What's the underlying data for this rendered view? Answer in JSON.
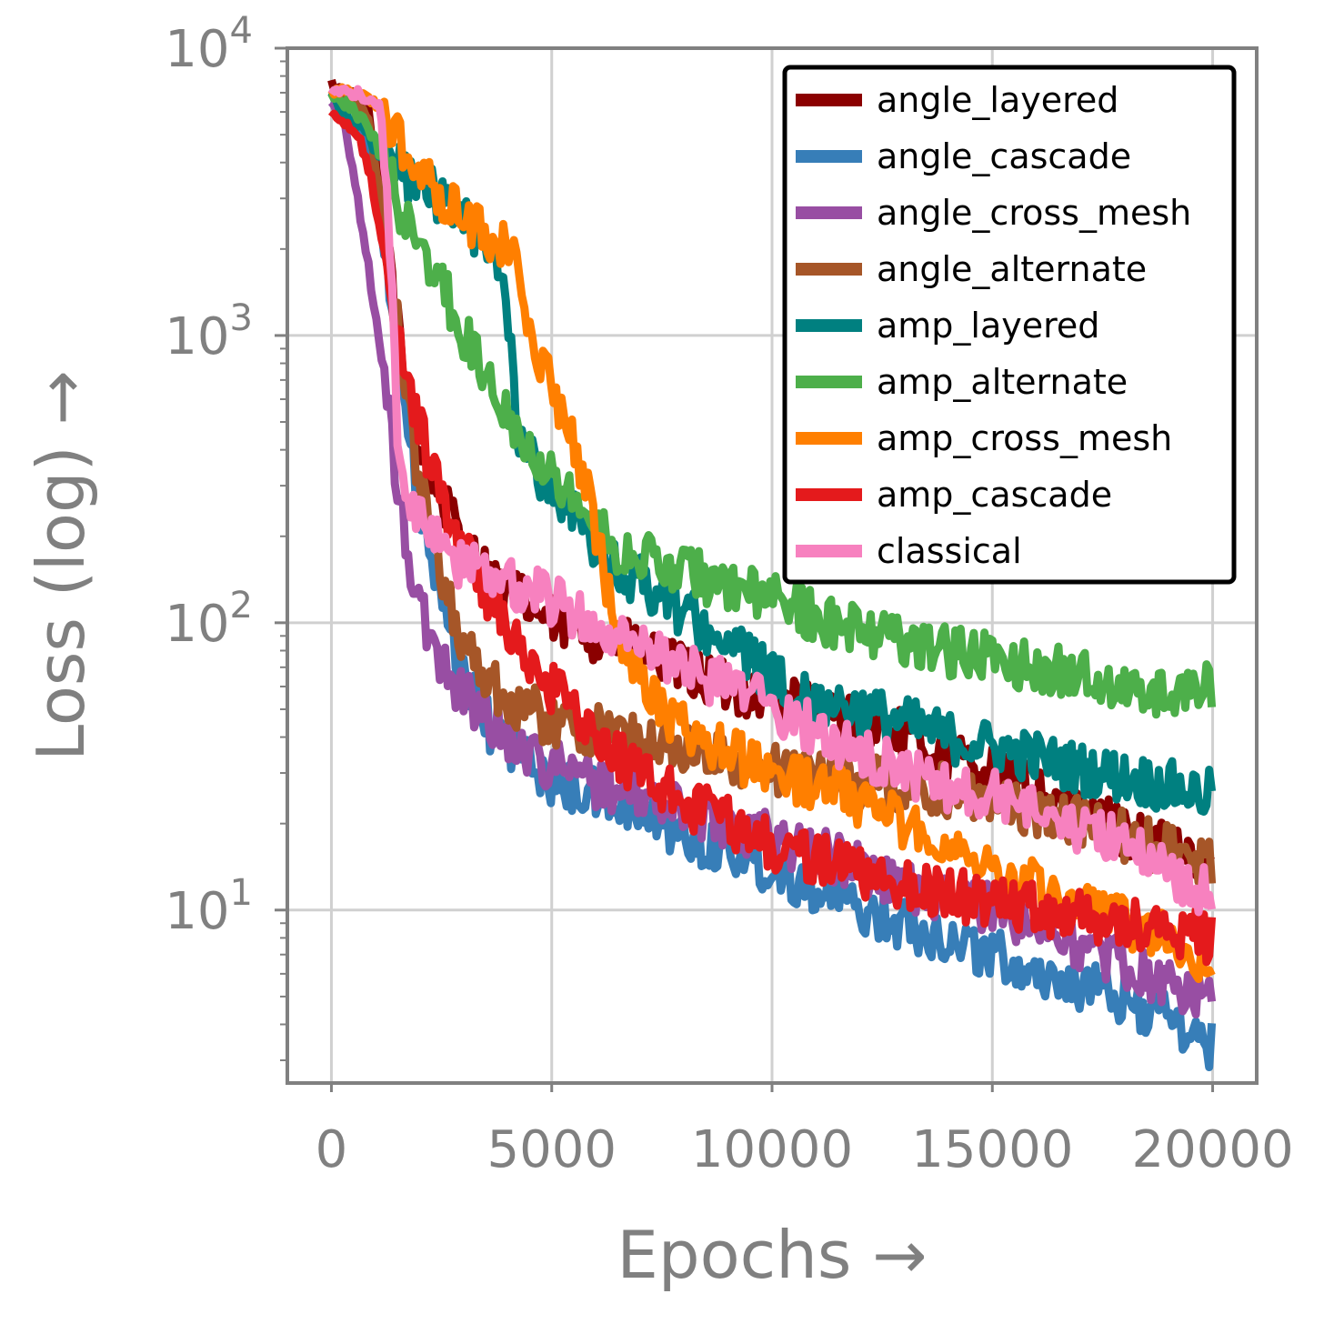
{
  "chart_data": {
    "type": "line",
    "xlabel": "Epochs →",
    "ylabel": "Loss (log) →",
    "xlim": [
      -1000,
      21000
    ],
    "ylim": [
      2.5,
      10000
    ],
    "y_scale": "log",
    "grid": true,
    "legend_position": "top-right",
    "x_ticks": [
      0,
      5000,
      10000,
      15000,
      20000
    ],
    "x_tick_labels": [
      "0",
      "5000",
      "10000",
      "15000",
      "20000"
    ],
    "y_ticks": [
      10,
      100,
      1000,
      10000
    ],
    "y_tick_base": "10",
    "y_tick_exponents": [
      "1",
      "2",
      "3",
      "4"
    ],
    "series": [
      {
        "name": "angle_layered",
        "color": "#8b0000",
        "x": [
          0,
          300,
          800,
          1200,
          1600,
          2000,
          2500,
          3000,
          3500,
          4000,
          5000,
          6000,
          7000,
          8000,
          9000,
          10000,
          11000,
          12000,
          13000,
          14000,
          15000,
          16000,
          17000,
          18000,
          19000,
          20000
        ],
        "y": [
          7500,
          7000,
          6500,
          2500,
          800,
          400,
          270,
          190,
          150,
          130,
          100,
          90,
          80,
          68,
          60,
          55,
          50,
          45,
          40,
          35,
          30,
          26,
          22,
          19,
          16,
          14
        ]
      },
      {
        "name": "angle_cascade",
        "color": "#377eb8",
        "x": [
          0,
          300,
          700,
          1000,
          1300,
          1600,
          2000,
          2500,
          3000,
          3500,
          4000,
          5000,
          6000,
          7000,
          8000,
          9000,
          10000,
          11000,
          12000,
          13000,
          14000,
          15000,
          16000,
          17000,
          18000,
          19000,
          20000
        ],
        "y": [
          6800,
          6000,
          5000,
          3500,
          1500,
          600,
          250,
          110,
          65,
          45,
          38,
          28,
          25,
          22,
          18,
          16,
          14,
          12,
          10,
          9,
          8,
          7,
          6,
          5.5,
          4.8,
          4.2,
          3.3
        ]
      },
      {
        "name": "angle_cross_mesh",
        "color": "#984ea3",
        "x": [
          0,
          300,
          600,
          900,
          1200,
          1500,
          1800,
          2200,
          2700,
          3000,
          3500,
          4000,
          5000,
          6000,
          7000,
          8000,
          9000,
          10000,
          11000,
          12000,
          13000,
          14000,
          15000,
          16000,
          17000,
          18000,
          19000,
          20000
        ],
        "y": [
          6500,
          5500,
          3000,
          1500,
          700,
          300,
          150,
          90,
          65,
          58,
          48,
          40,
          32,
          28,
          25,
          22,
          20,
          18,
          16,
          14,
          12,
          11,
          10,
          9,
          7.5,
          6.5,
          5.5,
          4.8
        ]
      },
      {
        "name": "angle_alternate",
        "color": "#a65628",
        "x": [
          0,
          300,
          800,
          1200,
          1600,
          2000,
          2500,
          3000,
          3500,
          4000,
          5000,
          6000,
          7000,
          8000,
          9000,
          10000,
          11000,
          12000,
          13000,
          14000,
          15000,
          16000,
          17000,
          18000,
          19000,
          20000
        ],
        "y": [
          7000,
          6500,
          6000,
          2500,
          800,
          300,
          150,
          85,
          65,
          55,
          45,
          42,
          40,
          36,
          33,
          31,
          29,
          28,
          27,
          26,
          24,
          22,
          20,
          18,
          16,
          14
        ]
      },
      {
        "name": "amp_layered",
        "color": "#008080",
        "x": [
          0,
          300,
          800,
          1200,
          1600,
          2000,
          2500,
          3000,
          3500,
          3700,
          4000,
          4200,
          4400,
          4800,
          5500,
          6000,
          6500,
          7000,
          8000,
          9000,
          9500,
          10000,
          11000,
          12000,
          13000,
          14000,
          15000,
          16000,
          17000,
          18000,
          19000,
          20000
        ],
        "y": [
          7000,
          6000,
          5000,
          4000,
          3700,
          3400,
          3000,
          2500,
          2100,
          1900,
          1300,
          500,
          400,
          320,
          250,
          170,
          150,
          140,
          110,
          85,
          75,
          63,
          55,
          50,
          45,
          40,
          37,
          34,
          31,
          29,
          27,
          25
        ]
      },
      {
        "name": "amp_alternate",
        "color": "#4daf4a",
        "x": [
          0,
          300,
          800,
          1200,
          1600,
          2000,
          2500,
          3000,
          3500,
          4000,
          4500,
          5000,
          5500,
          6000,
          6500,
          7000,
          8000,
          9000,
          10000,
          11000,
          12000,
          13000,
          14000,
          15000,
          16000,
          17000,
          18000,
          19000,
          20000
        ],
        "y": [
          7000,
          6500,
          5500,
          4000,
          2700,
          2000,
          1500,
          1000,
          750,
          550,
          420,
          340,
          270,
          220,
          180,
          170,
          150,
          135,
          120,
          105,
          95,
          88,
          80,
          75,
          70,
          65,
          60,
          56,
          60
        ]
      },
      {
        "name": "amp_cross_mesh",
        "color": "#ff7f00",
        "x": [
          0,
          300,
          800,
          1200,
          1500,
          1800,
          2200,
          2600,
          3000,
          3500,
          4000,
          4300,
          4600,
          5000,
          5400,
          5800,
          6200,
          6500,
          6800,
          7200,
          8000,
          9000,
          10000,
          11000,
          12000,
          13000,
          14000,
          15000,
          16000,
          17000,
          18000,
          19000,
          20000
        ],
        "y": [
          7000,
          7000,
          6800,
          6000,
          5000,
          3800,
          3300,
          3000,
          2600,
          2300,
          2000,
          1500,
          1000,
          650,
          450,
          280,
          150,
          90,
          70,
          55,
          42,
          35,
          30,
          27,
          24,
          20,
          17,
          14,
          12,
          10,
          9,
          8,
          6
        ]
      },
      {
        "name": "amp_cascade",
        "color": "#e41a1c",
        "x": [
          0,
          300,
          600,
          900,
          1200,
          1500,
          1800,
          2200,
          2600,
          3000,
          3500,
          4000,
          5000,
          6000,
          7000,
          8000,
          9000,
          10000,
          11000,
          12000,
          13000,
          14000,
          15000,
          16000,
          17000,
          18000,
          19000,
          20000
        ],
        "y": [
          6000,
          5500,
          5000,
          3500,
          2000,
          1000,
          600,
          380,
          250,
          180,
          130,
          95,
          60,
          40,
          30,
          24,
          20,
          17,
          15,
          13.5,
          12.5,
          11.5,
          10.5,
          10,
          9.5,
          9,
          8.5,
          8
        ]
      },
      {
        "name": "classical",
        "color": "#f781bf",
        "x": [
          0,
          300,
          800,
          1100,
          1300,
          1500,
          1700,
          2000,
          2500,
          3000,
          3500,
          4000,
          5000,
          6000,
          7000,
          8000,
          9000,
          10000,
          11000,
          12000,
          13000,
          14000,
          15000,
          16000,
          17000,
          18000,
          19000,
          20000
        ],
        "y": [
          7000,
          7000,
          6800,
          6500,
          2500,
          500,
          280,
          230,
          180,
          160,
          150,
          140,
          120,
          100,
          80,
          70,
          60,
          50,
          42,
          35,
          30,
          27,
          25,
          22,
          19,
          17,
          14,
          11
        ]
      }
    ]
  }
}
